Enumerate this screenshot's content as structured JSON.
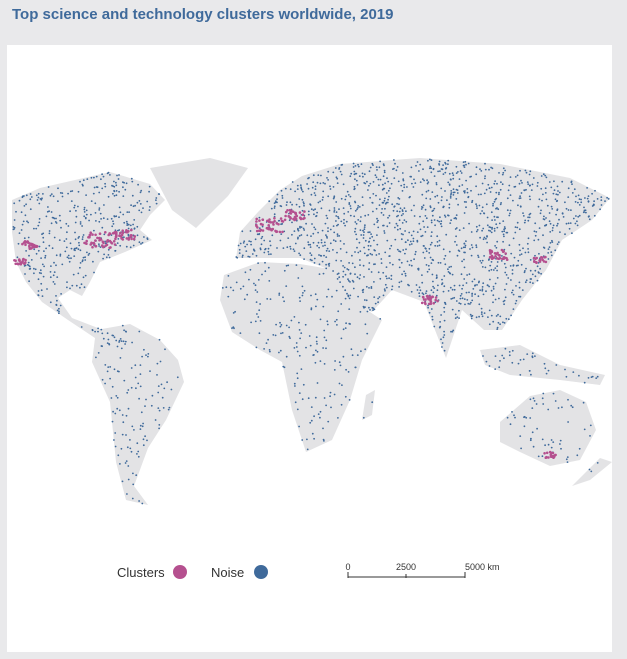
{
  "header": {
    "title": "Top science and technology clusters worldwide, 2019"
  },
  "legend": {
    "items": [
      {
        "label": "Clusters",
        "color": "#b5508f"
      },
      {
        "label": "Noise",
        "color": "#3f6a9b"
      }
    ]
  },
  "scale_bar": {
    "labels": [
      "0",
      "2500",
      "5000 km"
    ]
  }
}
